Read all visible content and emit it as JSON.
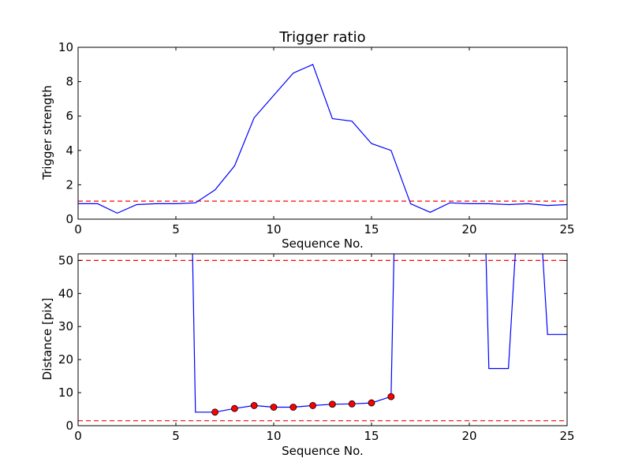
{
  "chart_data": [
    {
      "type": "line",
      "title": "Trigger ratio",
      "xlabel": "Sequence No.",
      "ylabel": "Trigger strength",
      "xlim": [
        0,
        25
      ],
      "ylim": [
        0,
        10
      ],
      "xticks": [
        0,
        5,
        10,
        15,
        20,
        25
      ],
      "yticks": [
        0,
        2,
        4,
        6,
        8,
        10
      ],
      "grid": false,
      "series": [
        {
          "color": "#0000ff",
          "x": [
            0,
            1,
            2,
            3,
            4,
            5,
            6,
            7,
            8,
            9,
            10,
            11,
            12,
            13,
            14,
            15,
            16,
            17,
            18,
            19,
            20,
            21,
            22,
            23,
            24,
            25
          ],
          "y": [
            0.9,
            0.9,
            0.35,
            0.85,
            0.9,
            0.9,
            0.95,
            1.7,
            3.1,
            5.9,
            7.2,
            8.5,
            9.0,
            5.85,
            5.7,
            4.4,
            4.0,
            0.9,
            0.4,
            0.95,
            0.9,
            0.9,
            0.85,
            0.9,
            0.8,
            0.85
          ]
        }
      ],
      "hlines": [
        {
          "y": 1.05,
          "color": "#ff0000",
          "style": "dashed"
        }
      ]
    },
    {
      "type": "line",
      "title": "",
      "xlabel": "Sequence No.",
      "ylabel": "Distance [pix]",
      "xlim": [
        0,
        25
      ],
      "ylim": [
        0,
        52
      ],
      "xticks": [
        0,
        5,
        10,
        15,
        20,
        25
      ],
      "yticks": [
        0,
        10,
        20,
        30,
        40,
        50
      ],
      "grid": false,
      "series": [
        {
          "color": "#0000ff",
          "x": [
            5.85,
            6,
            7,
            8,
            9,
            10,
            11,
            12,
            13,
            14,
            15,
            16,
            16.15
          ],
          "y": [
            52,
            4.1,
            4.1,
            5.2,
            6.1,
            5.6,
            5.6,
            6.1,
            6.5,
            6.6,
            6.9,
            8.8,
            52
          ]
        },
        {
          "color": "#0000ff",
          "x": [
            20.85,
            21,
            22,
            22.35
          ],
          "y": [
            52,
            17.3,
            17.3,
            52
          ]
        },
        {
          "color": "#0000ff",
          "x": [
            23.75,
            24,
            25
          ],
          "y": [
            52,
            27.6,
            27.6
          ]
        }
      ],
      "markers": {
        "color": "#ff0000",
        "x": [
          7,
          8,
          9,
          10,
          11,
          12,
          13,
          14,
          15,
          16
        ],
        "y": [
          4.1,
          5.2,
          6.1,
          5.6,
          5.6,
          6.1,
          6.5,
          6.6,
          6.9,
          8.8
        ]
      },
      "hlines": [
        {
          "y": 50,
          "color": "#ff0000",
          "style": "dashed"
        },
        {
          "y": 1.5,
          "color": "#ff0000",
          "style": "dashed"
        }
      ]
    }
  ]
}
